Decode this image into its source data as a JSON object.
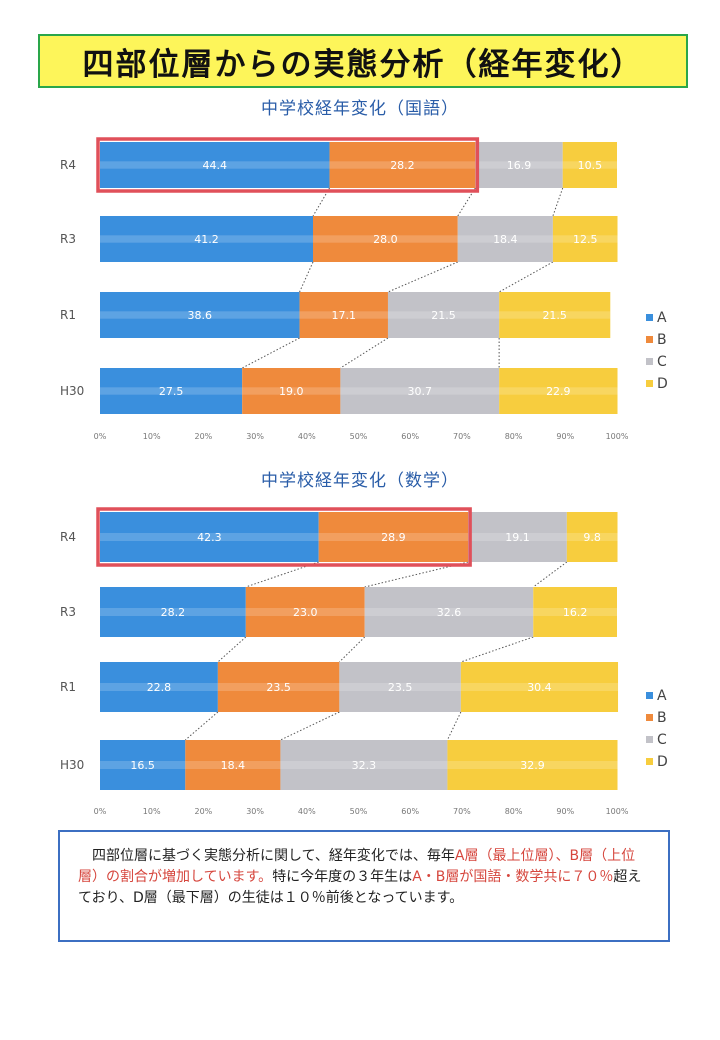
{
  "page_title": "四部位層からの実態分析（経年変化）",
  "chart_data": [
    {
      "type": "bar",
      "orientation": "horizontal-stacked-100",
      "title": "中学校経年変化（国語）",
      "categories": [
        "R4",
        "R3",
        "R1",
        "H30"
      ],
      "series": [
        {
          "name": "A",
          "values": [
            44.4,
            41.2,
            38.6,
            27.5
          ]
        },
        {
          "name": "B",
          "values": [
            28.2,
            28.0,
            17.1,
            19.0
          ]
        },
        {
          "name": "C",
          "values": [
            16.9,
            18.4,
            21.5,
            30.7
          ]
        },
        {
          "name": "D",
          "values": [
            10.5,
            12.5,
            21.5,
            22.9
          ]
        }
      ],
      "xticks": [
        "0%",
        "10%",
        "20%",
        "30%",
        "40%",
        "50%",
        "60%",
        "70%",
        "80%",
        "90%",
        "100%"
      ],
      "xlim": [
        0,
        100
      ],
      "colors": {
        "A": "#3a8fdd",
        "B": "#ef8a3c",
        "C": "#c2c2c8",
        "D": "#f7cd3e"
      },
      "highlight": {
        "category": "R4",
        "series": [
          "A",
          "B"
        ],
        "color": "#e0505a"
      },
      "legend": "right",
      "connector_lines": true
    },
    {
      "type": "bar",
      "orientation": "horizontal-stacked-100",
      "title": "中学校経年変化（数学）",
      "categories": [
        "R4",
        "R3",
        "R1",
        "H30"
      ],
      "series": [
        {
          "name": "A",
          "values": [
            42.3,
            28.2,
            22.8,
            16.5
          ]
        },
        {
          "name": "B",
          "values": [
            28.9,
            23.0,
            23.5,
            18.4
          ]
        },
        {
          "name": "C",
          "values": [
            19.1,
            32.6,
            23.5,
            32.3
          ]
        },
        {
          "name": "D",
          "values": [
            9.8,
            16.2,
            30.4,
            32.9
          ]
        }
      ],
      "xticks": [
        "0%",
        "10%",
        "20%",
        "30%",
        "40%",
        "50%",
        "60%",
        "70%",
        "80%",
        "90%",
        "100%"
      ],
      "xlim": [
        0,
        100
      ],
      "colors": {
        "A": "#3a8fdd",
        "B": "#ef8a3c",
        "C": "#c2c2c8",
        "D": "#f7cd3e"
      },
      "highlight": {
        "category": "R4",
        "series": [
          "A",
          "B"
        ],
        "color": "#e0505a"
      },
      "legend": "right",
      "connector_lines": true
    }
  ],
  "note": {
    "p1": "　四部位層に基づく実態分析に関して、経年変化では、毎年",
    "p2_red": "A層（最上位層）、B層（上位層）の割合が増加しています。",
    "p3": "特に今年度の３年生は",
    "p4_red": "A・B層が国語・数学共に７０％",
    "p5": "超えており、D層（最下層）の生徒は１０％前後となっています。"
  }
}
